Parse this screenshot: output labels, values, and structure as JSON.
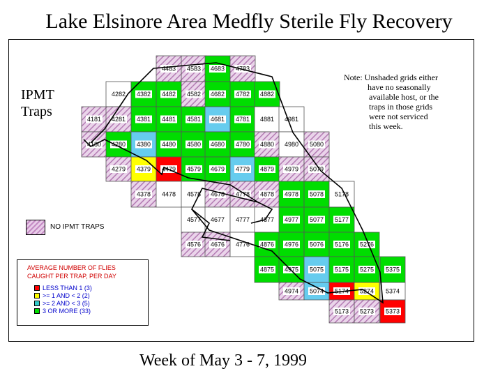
{
  "title": "Lake Elsinore Area Medfly Sterile Fly Recovery",
  "side_label": [
    "IPMT",
    "Traps"
  ],
  "note_lines": [
    "Note: Unshaded grids either",
    "have no seasonally",
    "available host, or the",
    "traps in those grids",
    "were not serviced",
    "this week."
  ],
  "no_trap_label": "NO IPMT TRAPS",
  "avg_title": [
    "AVERAGE NUMBER OF FLIES",
    "CAUGHT PER TRAP, PER DAY"
  ],
  "legend": [
    {
      "label": "LESS THAN 1  (3)",
      "color": "#ff0000"
    },
    {
      "label": ">= 1 AND < 2   (2)",
      "color": "#ffff00"
    },
    {
      "label": ">= 2 AND < 3   (5)",
      "color": "#33cccc"
    },
    {
      "label": "3 OR MORE   (33)",
      "color": "#00dd00"
    }
  ],
  "week_label": "Week of May 3 - 7, 1999",
  "colors": {
    "green": "#00dd00",
    "cyan": "#66ccee",
    "yellow": "#ffff00",
    "red": "#ff0000",
    "white": "#ffffff",
    "hatch": "hatch"
  },
  "grids": [
    {
      "id": "4483",
      "row": 0,
      "col": 3,
      "fill": "hatch"
    },
    {
      "id": "4583",
      "row": 0,
      "col": 4,
      "fill": "hatch"
    },
    {
      "id": "4683",
      "row": 0,
      "col": 5,
      "fill": "green"
    },
    {
      "id": "4783",
      "row": 0,
      "col": 6,
      "fill": "hatch"
    },
    {
      "id": "4282",
      "row": 1,
      "col": 1,
      "fill": "white"
    },
    {
      "id": "4382",
      "row": 1,
      "col": 2,
      "fill": "green"
    },
    {
      "id": "4482",
      "row": 1,
      "col": 3,
      "fill": "green"
    },
    {
      "id": "4582",
      "row": 1,
      "col": 4,
      "fill": "hatch"
    },
    {
      "id": "4682",
      "row": 1,
      "col": 5,
      "fill": "green"
    },
    {
      "id": "4782",
      "row": 1,
      "col": 6,
      "fill": "green"
    },
    {
      "id": "4882",
      "row": 1,
      "col": 7,
      "fill": "green"
    },
    {
      "id": "4181",
      "row": 2,
      "col": 0,
      "fill": "hatch"
    },
    {
      "id": "4281",
      "row": 2,
      "col": 1,
      "fill": "hatch"
    },
    {
      "id": "4381",
      "row": 2,
      "col": 2,
      "fill": "green"
    },
    {
      "id": "4481",
      "row": 2,
      "col": 3,
      "fill": "green"
    },
    {
      "id": "4581",
      "row": 2,
      "col": 4,
      "fill": "green"
    },
    {
      "id": "4681",
      "row": 2,
      "col": 5,
      "fill": "cyan"
    },
    {
      "id": "4781",
      "row": 2,
      "col": 6,
      "fill": "green"
    },
    {
      "id": "4881",
      "row": 2,
      "col": 7,
      "fill": "white"
    },
    {
      "id": "4981",
      "row": 2,
      "col": 8,
      "fill": "white"
    },
    {
      "id": "4180",
      "row": 3,
      "col": 0,
      "fill": "hatch"
    },
    {
      "id": "4280",
      "row": 3,
      "col": 1,
      "fill": "green"
    },
    {
      "id": "4380",
      "row": 3,
      "col": 2,
      "fill": "cyan"
    },
    {
      "id": "4480",
      "row": 3,
      "col": 3,
      "fill": "green"
    },
    {
      "id": "4580",
      "row": 3,
      "col": 4,
      "fill": "green"
    },
    {
      "id": "4680",
      "row": 3,
      "col": 5,
      "fill": "green"
    },
    {
      "id": "4780",
      "row": 3,
      "col": 6,
      "fill": "green"
    },
    {
      "id": "4880",
      "row": 3,
      "col": 7,
      "fill": "hatch"
    },
    {
      "id": "4980",
      "row": 3,
      "col": 8,
      "fill": "white"
    },
    {
      "id": "5080",
      "row": 3,
      "col": 9,
      "fill": "hatch"
    },
    {
      "id": "4279",
      "row": 4,
      "col": 1,
      "fill": "hatch"
    },
    {
      "id": "4379",
      "row": 4,
      "col": 2,
      "fill": "yellow"
    },
    {
      "id": "4479",
      "row": 4,
      "col": 3,
      "fill": "red"
    },
    {
      "id": "4579",
      "row": 4,
      "col": 4,
      "fill": "green"
    },
    {
      "id": "4679",
      "row": 4,
      "col": 5,
      "fill": "green"
    },
    {
      "id": "4779",
      "row": 4,
      "col": 6,
      "fill": "cyan"
    },
    {
      "id": "4879",
      "row": 4,
      "col": 7,
      "fill": "green"
    },
    {
      "id": "4979",
      "row": 4,
      "col": 8,
      "fill": "hatch"
    },
    {
      "id": "5079",
      "row": 4,
      "col": 9,
      "fill": "hatch"
    },
    {
      "id": "4378",
      "row": 5,
      "col": 2,
      "fill": "hatch"
    },
    {
      "id": "4478",
      "row": 5,
      "col": 3,
      "fill": "white"
    },
    {
      "id": "4578",
      "row": 5,
      "col": 4,
      "fill": "white"
    },
    {
      "id": "4678",
      "row": 5,
      "col": 5,
      "fill": "hatch"
    },
    {
      "id": "4778",
      "row": 5,
      "col": 6,
      "fill": "hatch"
    },
    {
      "id": "4878",
      "row": 5,
      "col": 7,
      "fill": "hatch"
    },
    {
      "id": "4978",
      "row": 5,
      "col": 8,
      "fill": "green"
    },
    {
      "id": "5078",
      "row": 5,
      "col": 9,
      "fill": "green"
    },
    {
      "id": "5178",
      "row": 5,
      "col": 10,
      "fill": "white"
    },
    {
      "id": "4577",
      "row": 6,
      "col": 4,
      "fill": "white"
    },
    {
      "id": "4677",
      "row": 6,
      "col": 5,
      "fill": "white"
    },
    {
      "id": "4777",
      "row": 6,
      "col": 6,
      "fill": "white"
    },
    {
      "id": "4877",
      "row": 6,
      "col": 7,
      "fill": "white"
    },
    {
      "id": "4977",
      "row": 6,
      "col": 8,
      "fill": "green"
    },
    {
      "id": "5077",
      "row": 6,
      "col": 9,
      "fill": "green"
    },
    {
      "id": "5177",
      "row": 6,
      "col": 10,
      "fill": "green"
    },
    {
      "id": "4576",
      "row": 7,
      "col": 4,
      "fill": "hatch"
    },
    {
      "id": "4676",
      "row": 7,
      "col": 5,
      "fill": "hatch"
    },
    {
      "id": "4776",
      "row": 7,
      "col": 6,
      "fill": "white"
    },
    {
      "id": "4876",
      "row": 7,
      "col": 7,
      "fill": "green"
    },
    {
      "id": "4976",
      "row": 7,
      "col": 8,
      "fill": "green"
    },
    {
      "id": "5076",
      "row": 7,
      "col": 9,
      "fill": "green"
    },
    {
      "id": "5176",
      "row": 7,
      "col": 10,
      "fill": "green"
    },
    {
      "id": "5276",
      "row": 7,
      "col": 11,
      "fill": "green"
    },
    {
      "id": "4875",
      "row": 8,
      "col": 7,
      "fill": "green"
    },
    {
      "id": "4975",
      "row": 8,
      "col": 8,
      "fill": "green"
    },
    {
      "id": "5075",
      "row": 8,
      "col": 9,
      "fill": "cyan"
    },
    {
      "id": "5175",
      "row": 8,
      "col": 10,
      "fill": "green"
    },
    {
      "id": "5275",
      "row": 8,
      "col": 11,
      "fill": "green"
    },
    {
      "id": "5375",
      "row": 8,
      "col": 12,
      "fill": "green"
    },
    {
      "id": "4974",
      "row": 9,
      "col": 8,
      "fill": "hatch"
    },
    {
      "id": "5074",
      "row": 9,
      "col": 9,
      "fill": "cyan"
    },
    {
      "id": "5174",
      "row": 9,
      "col": 10,
      "fill": "red"
    },
    {
      "id": "5274",
      "row": 9,
      "col": 11,
      "fill": "yellow"
    },
    {
      "id": "5374",
      "row": 9,
      "col": 12,
      "fill": "white"
    },
    {
      "id": "5173",
      "row": 10,
      "col": 10,
      "fill": "hatch"
    },
    {
      "id": "5273",
      "row": 10,
      "col": 11,
      "fill": "hatch"
    },
    {
      "id": "5373",
      "row": 10,
      "col": 12,
      "fill": "red"
    }
  ]
}
